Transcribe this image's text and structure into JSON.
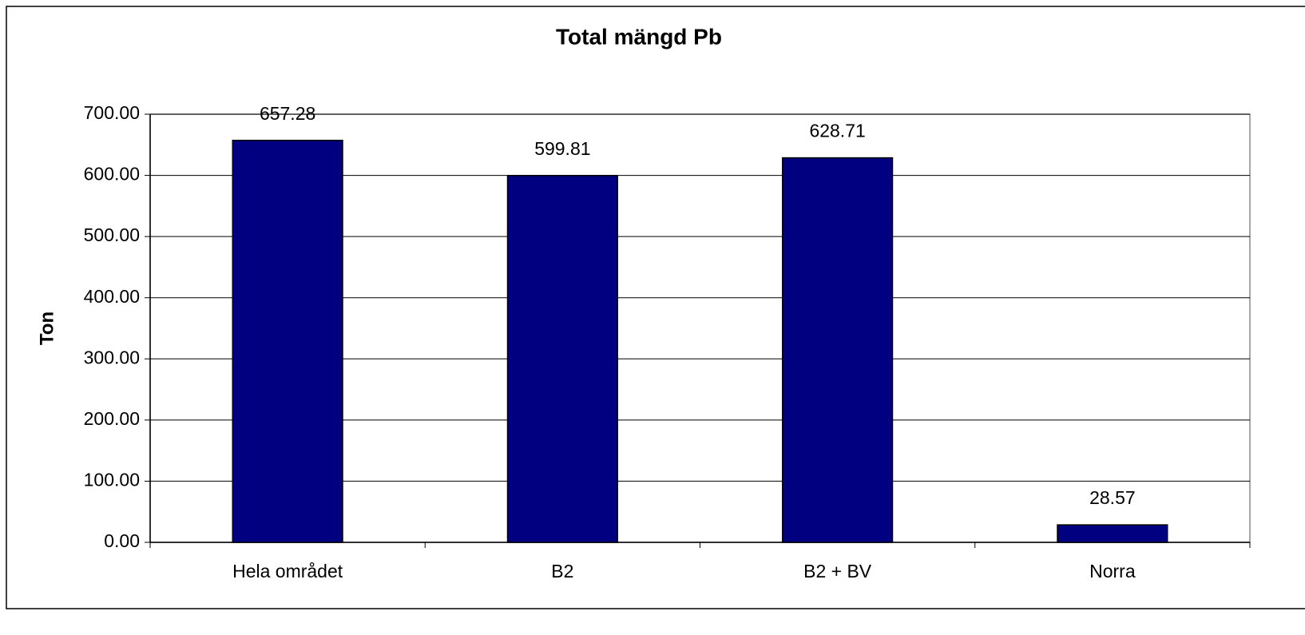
{
  "chart_data": {
    "type": "bar",
    "title": "Total mängd Pb",
    "y_label": "Ton",
    "categories": [
      "Hela området",
      "B2",
      "B2 + BV",
      "Norra"
    ],
    "values": [
      657.28,
      599.81,
      628.71,
      28.57
    ],
    "color": "#000080",
    "ylim": [
      0,
      700
    ],
    "yticks": [
      {
        "value": 0,
        "label": "0.00"
      },
      {
        "value": 100,
        "label": "100.00"
      },
      {
        "value": 200,
        "label": "200.00"
      },
      {
        "value": 300,
        "label": "300.00"
      },
      {
        "value": 400,
        "label": "400.00"
      },
      {
        "value": 500,
        "label": "500.00"
      },
      {
        "value": 600,
        "label": "600.00"
      },
      {
        "value": 700,
        "label": "700.00"
      }
    ],
    "grid": true
  }
}
